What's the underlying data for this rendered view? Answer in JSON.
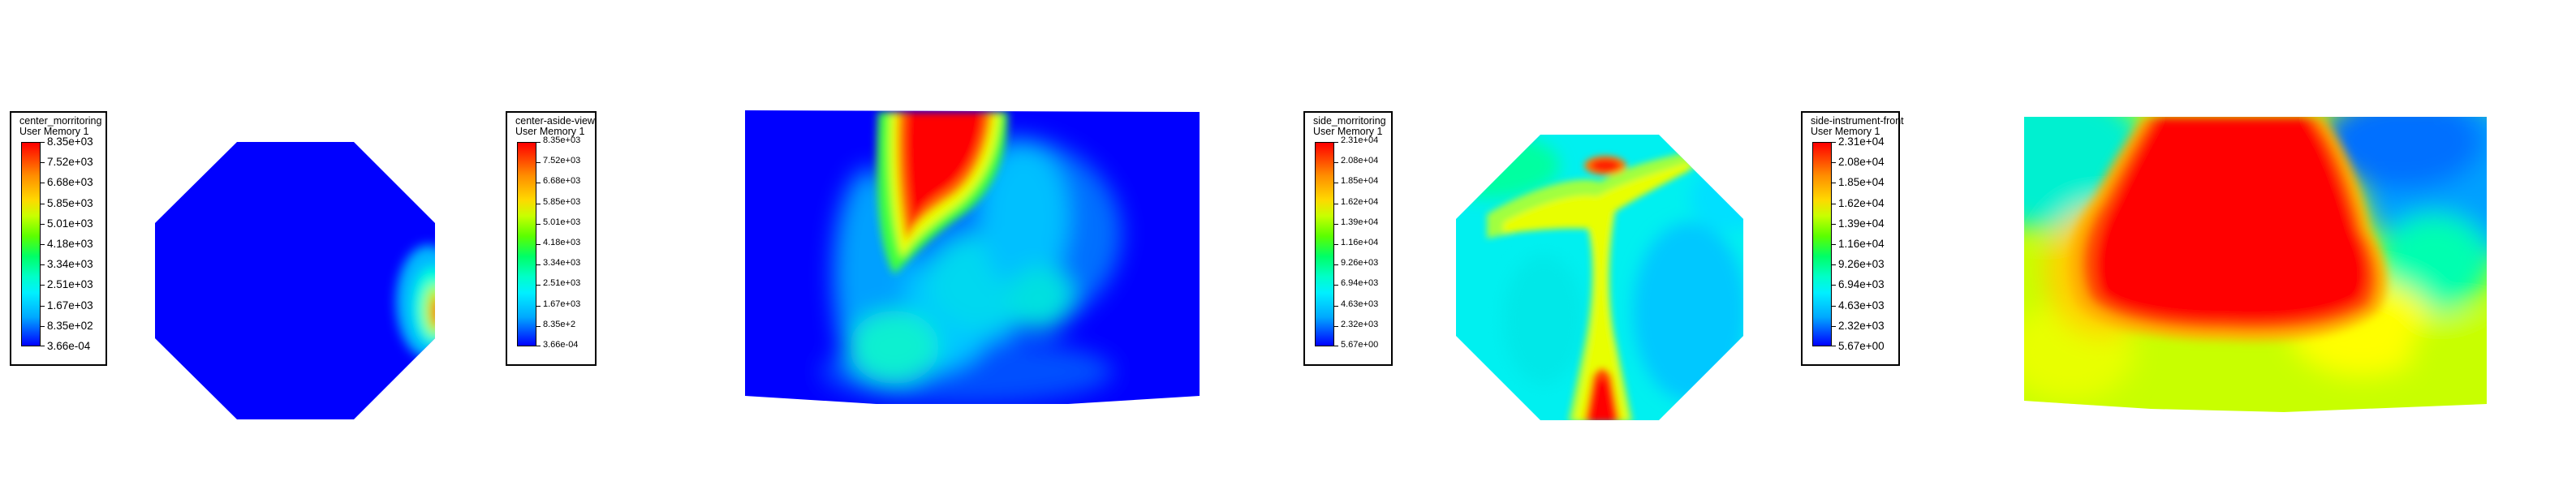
{
  "legends": [
    {
      "title1": "center_morritoring",
      "title2": "User Memory 1",
      "labels": [
        "8.35e+03",
        "7.52e+03",
        "6.68e+03",
        "5.85e+03",
        "5.01e+03",
        "4.18e+03",
        "3.34e+03",
        "2.51e+03",
        "1.67e+03",
        "8.35e+02",
        "3.66e-04"
      ]
    },
    {
      "title1": "center-aside-view",
      "title2": "User Memory 1",
      "labels": [
        "8.35e+03",
        "7.52e+03",
        "6.68e+03",
        "5.85e+03",
        "5.01e+03",
        "4.18e+03",
        "3.34e+03",
        "2.51e+03",
        "1.67e+03",
        "8.35e+2",
        "3.66e-04"
      ]
    },
    {
      "title1": "side_morritoring",
      "title2": "User Memory 1",
      "labels": [
        "2.31e+04",
        "2.08e+04",
        "1.85e+04",
        "1.62e+04",
        "1.39e+04",
        "1.16e+04",
        "9.26e+03",
        "6.94e+03",
        "4.63e+03",
        "2.32e+03",
        "5.67e+00"
      ]
    },
    {
      "title1": "side-instrument-front",
      "title2": "User Memory 1",
      "labels": [
        "2.31e+04",
        "2.08e+04",
        "1.85e+04",
        "1.62e+04",
        "1.39e+04",
        "1.16e+04",
        "9.26e+03",
        "6.94e+03",
        "4.63e+03",
        "2.32e+03",
        "5.67e+00"
      ]
    }
  ],
  "colors": {
    "red": "#ff0000",
    "yellow": "#ffff00",
    "green": "#00ff00",
    "cyan": "#00ffff",
    "blue": "#0000ff"
  }
}
